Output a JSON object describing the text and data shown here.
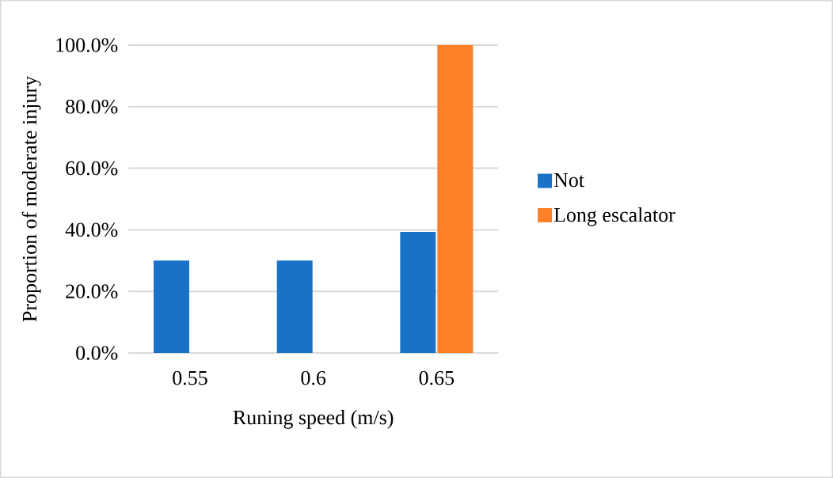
{
  "chart_data": {
    "type": "bar",
    "xlabel": "Runing speed (m/s)",
    "ylabel": "Proportion of moderate injury",
    "categories": [
      "0.55",
      "0.6",
      "0.65"
    ],
    "series": [
      {
        "name": "Not",
        "color": "#1772c8",
        "values": [
          30,
          30,
          39.3
        ]
      },
      {
        "name": "Long escalator",
        "color": "#ff7f27",
        "values": [
          null,
          null,
          100
        ]
      }
    ],
    "ylim": [
      0,
      100
    ],
    "yticks": [
      {
        "value": 0,
        "label": "0.0%"
      },
      {
        "value": 20,
        "label": "20.0%"
      },
      {
        "value": 40,
        "label": "40.0%"
      },
      {
        "value": 60,
        "label": "60.0%"
      },
      {
        "value": 80,
        "label": "80.0%"
      },
      {
        "value": 100,
        "label": "100.0%"
      }
    ],
    "grid": "y",
    "legend": "right"
  }
}
